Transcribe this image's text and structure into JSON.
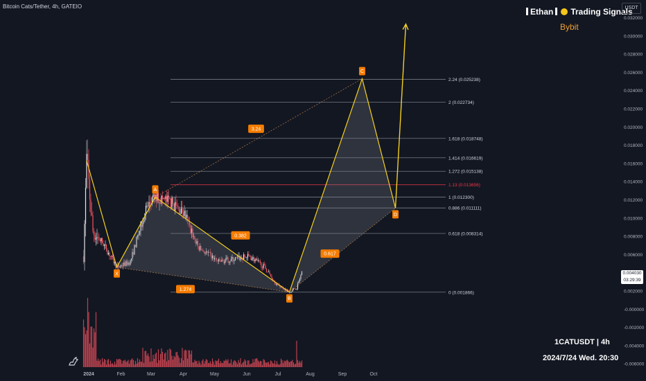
{
  "header": {
    "title": "Bitcoin Cats/Tether, 4h, GATEIO",
    "brand_name": "Ethan",
    "brand_suffix": "Trading Signals",
    "exchange": "Bybit",
    "currency_button": "USDT"
  },
  "footer": {
    "symbol": "1CATUSDT | 4h",
    "datetime": "2024/7/24 Wed. 20:30"
  },
  "last_price": {
    "price": "0.004030",
    "countdown": "03:29:39"
  },
  "colors": {
    "background": "#131722",
    "pattern_lines": "#f5d020",
    "pattern_fill": "#7b7e8a",
    "label_bg": "#f57c00",
    "fib_lines": "#787b86",
    "fib_highlight": "#f23645",
    "candle_up": "#e8e8e8",
    "candle_down": "#f7525f",
    "volume": "#f7525f"
  },
  "chart_data": {
    "type": "candlestick-with-harmonic-pattern",
    "y_axis": {
      "range": [
        -0.006,
        0.032
      ],
      "ticks": [
        "0.032000",
        "0.030000",
        "0.028000",
        "0.026000",
        "0.024000",
        "0.022000",
        "0.020000",
        "0.018000",
        "0.016000",
        "0.014000",
        "0.012000",
        "0.010000",
        "0.008000",
        "0.006000",
        "0.004000",
        "0.002000",
        "-0.000000",
        "-0.002000",
        "-0.004000",
        "-0.006000"
      ],
      "tick_values": [
        0.032,
        0.03,
        0.028,
        0.026,
        0.024,
        0.022,
        0.02,
        0.018,
        0.016,
        0.014,
        0.012,
        0.01,
        0.008,
        0.006,
        0.004,
        0.002,
        0,
        -0.002,
        -0.004,
        -0.006
      ]
    },
    "x_axis": {
      "ticks": [
        "2024",
        "Feb",
        "Mar",
        "Apr",
        "May",
        "Jun",
        "Jul",
        "Aug",
        "Sep",
        "Oct"
      ],
      "tick_dates": [
        "2024-01-01",
        "2024-02-01",
        "2024-03-01",
        "2024-04-01",
        "2024-05-01",
        "2024-06-01",
        "2024-07-01",
        "2024-08-01",
        "2024-09-01",
        "2024-10-01"
      ],
      "range": [
        "2023-12-22",
        "2024-11-03"
      ]
    },
    "pattern_points": [
      {
        "label": "X",
        "date": "2024-01-28",
        "price": 0.0046
      },
      {
        "label": "A",
        "date": "2024-03-05",
        "price": 0.0123
      },
      {
        "label": "B",
        "date": "2024-07-12",
        "price": 0.00187
      },
      {
        "label": "C",
        "date": "2024-09-20",
        "price": 0.0253
      },
      {
        "label": "D",
        "date": "2024-10-22",
        "price": 0.0111
      }
    ],
    "initial_leg": [
      {
        "date": "2023-12-30",
        "price": 0.0163
      },
      {
        "date": "2024-01-28",
        "price": 0.0046
      }
    ],
    "ratio_labels": [
      {
        "text": "1.274",
        "date": "2024-04-03",
        "price": 0.0022
      },
      {
        "text": "0.382",
        "date": "2024-05-26",
        "price": 0.0081
      },
      {
        "text": "3.24",
        "date": "2024-06-10",
        "price": 0.0198
      },
      {
        "text": "0.617",
        "date": "2024-08-20",
        "price": 0.0061
      }
    ],
    "fib_levels": [
      {
        "ratio": "2.24",
        "value": "0.025238",
        "price": 0.025238
      },
      {
        "ratio": "2",
        "value": "0.022734",
        "price": 0.022734
      },
      {
        "ratio": "1.618",
        "value": "0.018748",
        "price": 0.018748
      },
      {
        "ratio": "1.414",
        "value": "0.016619",
        "price": 0.016619
      },
      {
        "ratio": "1.272",
        "value": "0.015138",
        "price": 0.015138
      },
      {
        "ratio": "1.13",
        "value": "0.013656",
        "price": 0.013656,
        "highlight": true
      },
      {
        "ratio": "1",
        "value": "0.012300",
        "price": 0.0123
      },
      {
        "ratio": "0.886",
        "value": "0.011111",
        "price": 0.011111
      },
      {
        "ratio": "0.618",
        "value": "0.008314",
        "price": 0.008314
      },
      {
        "ratio": "0",
        "value": "0.001866",
        "price": 0.001866
      }
    ],
    "projection_arrow": [
      {
        "date": "2024-10-22",
        "price": 0.0111
      },
      {
        "date": "2024-11-01",
        "price": 0.0313
      }
    ]
  }
}
